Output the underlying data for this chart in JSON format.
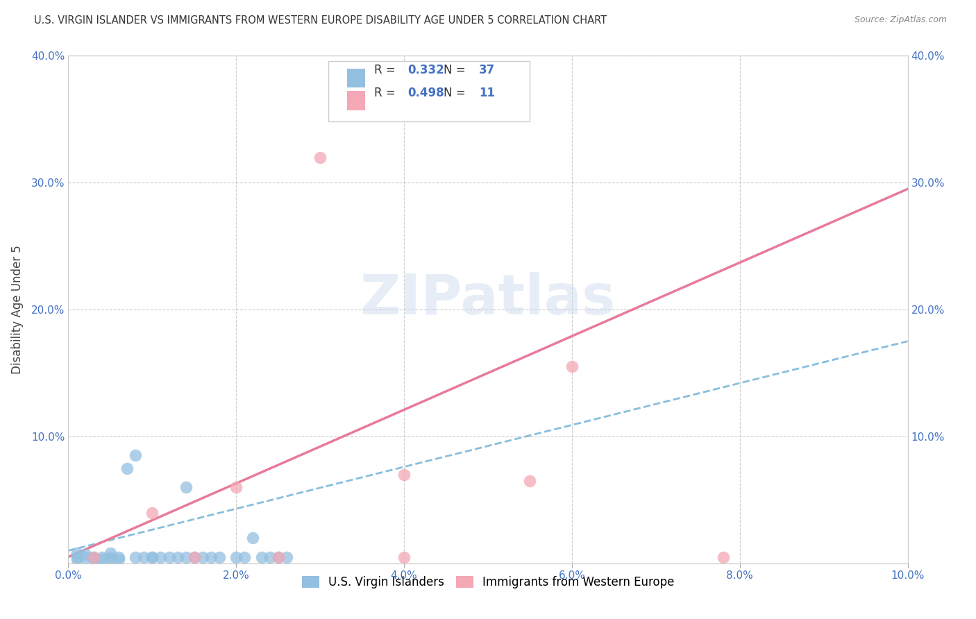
{
  "title": "U.S. VIRGIN ISLANDER VS IMMIGRANTS FROM WESTERN EUROPE DISABILITY AGE UNDER 5 CORRELATION CHART",
  "source": "Source: ZipAtlas.com",
  "ylabel": "Disability Age Under 5",
  "xlim": [
    0,
    0.1
  ],
  "ylim": [
    0,
    0.4
  ],
  "xticks": [
    0.0,
    0.02,
    0.04,
    0.06,
    0.08,
    0.1
  ],
  "yticks": [
    0.0,
    0.1,
    0.2,
    0.3,
    0.4
  ],
  "xtick_labels": [
    "0.0%",
    "2.0%",
    "4.0%",
    "6.0%",
    "8.0%",
    "10.0%"
  ],
  "ytick_labels": [
    "",
    "10.0%",
    "20.0%",
    "30.0%",
    "40.0%"
  ],
  "blue_color": "#93bfe0",
  "pink_color": "#f4a7b5",
  "blue_line_color": "#6aaed6",
  "pink_line_color": "#e87a99",
  "blue_R": "0.332",
  "blue_N": "37",
  "pink_R": "0.498",
  "pink_N": "11",
  "watermark_text": "ZIPatlas",
  "blue_scatter_x": [
    0.001,
    0.001,
    0.001,
    0.002,
    0.002,
    0.003,
    0.003,
    0.003,
    0.004,
    0.004,
    0.005,
    0.005,
    0.005,
    0.006,
    0.006,
    0.007,
    0.008,
    0.009,
    0.01,
    0.011,
    0.012,
    0.013,
    0.014,
    0.015,
    0.016,
    0.017,
    0.018,
    0.02,
    0.021,
    0.022,
    0.023,
    0.024,
    0.025,
    0.026,
    0.014,
    0.008,
    0.01
  ],
  "blue_scatter_y": [
    0.005,
    0.008,
    0.003,
    0.005,
    0.007,
    0.005,
    0.004,
    0.003,
    0.005,
    0.003,
    0.005,
    0.008,
    0.003,
    0.005,
    0.003,
    0.075,
    0.085,
    0.005,
    0.005,
    0.005,
    0.005,
    0.005,
    0.005,
    0.005,
    0.005,
    0.005,
    0.005,
    0.005,
    0.005,
    0.02,
    0.005,
    0.005,
    0.005,
    0.005,
    0.06,
    0.005,
    0.005
  ],
  "pink_scatter_x": [
    0.003,
    0.01,
    0.015,
    0.02,
    0.025,
    0.03,
    0.04,
    0.055,
    0.06,
    0.078,
    0.04
  ],
  "pink_scatter_y": [
    0.005,
    0.04,
    0.005,
    0.06,
    0.005,
    0.32,
    0.005,
    0.065,
    0.155,
    0.005,
    0.07
  ],
  "blue_trend_x": [
    0.0,
    0.1
  ],
  "blue_trend_y": [
    0.01,
    0.175
  ],
  "pink_trend_x": [
    0.0,
    0.1
  ],
  "pink_trend_y": [
    0.005,
    0.295
  ],
  "legend_blue_label": "U.S. Virgin Islanders",
  "legend_pink_label": "Immigrants from Western Europe"
}
